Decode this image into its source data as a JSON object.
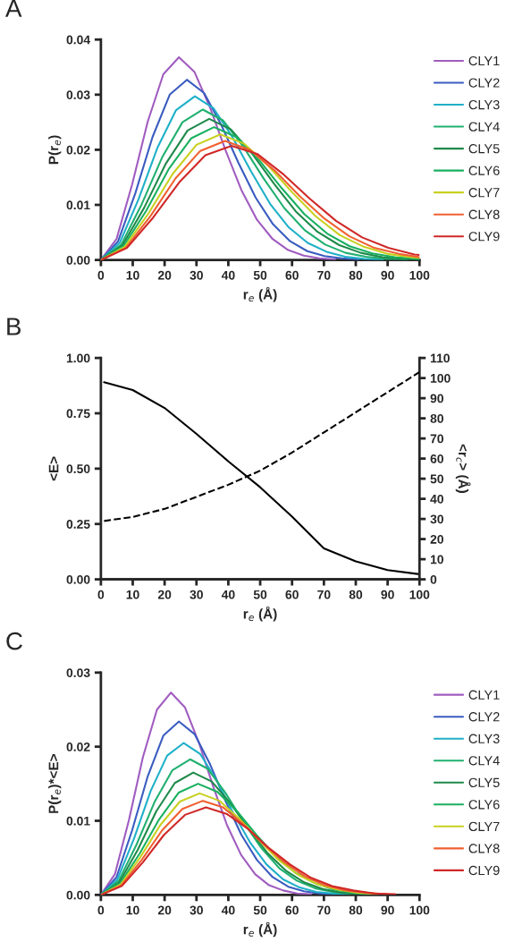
{
  "chart_data": [
    {
      "type": "line",
      "xlabel": "r$_{e}$ (Å)",
      "ylabel": "P(r$_{e}$)",
      "annotations": [
        "A"
      ],
      "legend": "right",
      "line_style": "solid",
      "marker": "none",
      "xlim": [
        0,
        100
      ],
      "xticks": [
        0,
        10,
        20,
        30,
        40,
        50,
        60,
        70,
        80,
        90,
        100
      ],
      "ylim": [
        0,
        0.04
      ],
      "yticks": [
        {
          "value": 0,
          "label": "0.00"
        },
        {
          "value": 0.01,
          "label": "0.01"
        },
        {
          "value": 0.02,
          "label": "0.02"
        },
        {
          "value": 0.03,
          "label": "0.03"
        },
        {
          "value": 0.04,
          "label": "0.04"
        }
      ],
      "series": [
        {
          "name": "CLY1",
          "color": "#a05cc0",
          "x": [
            0,
            4.9,
            9.8,
            14.7,
            19.6,
            24.5,
            29.4,
            34.3,
            39.2,
            44.1,
            49,
            53.9,
            58.8,
            63.7,
            68.6,
            73.5
          ],
          "values": [
            0,
            0.0038,
            0.0137,
            0.0251,
            0.0337,
            0.0368,
            0.0341,
            0.0276,
            0.0198,
            0.0127,
            0.0073,
            0.0038,
            0.0018,
            0.0008,
            0.0003,
            0.0001
          ]
        },
        {
          "name": "CLY2",
          "color": "#3a5cc0",
          "x": [
            0,
            5.4,
            10.8,
            16.2,
            21.6,
            27,
            32.4,
            37.8,
            43.2,
            48.6,
            54,
            59.4,
            64.8,
            70.2,
            75.6,
            81
          ],
          "values": [
            0,
            0.0034,
            0.0121,
            0.0223,
            0.03,
            0.0327,
            0.0303,
            0.0245,
            0.0176,
            0.0113,
            0.0065,
            0.0034,
            0.0016,
            0.0007,
            0.0003,
            0.0001
          ]
        },
        {
          "name": "CLY3",
          "color": "#1fb0c8",
          "x": [
            0,
            5.9,
            11.8,
            17.7,
            23.6,
            29.5,
            35.4,
            41.3,
            47.2,
            53.1,
            59,
            64.9,
            70.8,
            76.7,
            82.6,
            88.5
          ],
          "values": [
            0,
            0.0031,
            0.011,
            0.0203,
            0.0272,
            0.0297,
            0.0275,
            0.0223,
            0.016,
            0.0102,
            0.0059,
            0.0031,
            0.0015,
            0.0006,
            0.0002,
            0.0001
          ]
        },
        {
          "name": "CLY4",
          "color": "#20b070",
          "x": [
            0,
            6.4,
            12.8,
            19.2,
            25.6,
            32,
            38.4,
            44.8,
            51.2,
            57.6,
            64,
            70.4,
            76.8,
            83.2,
            89.6,
            96
          ],
          "values": [
            0,
            0.0028,
            0.0101,
            0.0186,
            0.025,
            0.0273,
            0.0253,
            0.0205,
            0.0147,
            0.0094,
            0.0054,
            0.0028,
            0.0013,
            0.0006,
            0.0002,
            0.0001
          ]
        },
        {
          "name": "CLY5",
          "color": "#1e8a4a",
          "x": [
            0,
            6.8,
            13.6,
            20.4,
            27.2,
            34,
            40.8,
            47.6,
            54.4,
            61.2,
            68,
            74.8,
            81.6,
            88.4,
            95.2,
            100
          ],
          "values": [
            0,
            0.0027,
            0.0095,
            0.0175,
            0.0235,
            0.0256,
            0.0237,
            0.0192,
            0.0138,
            0.0088,
            0.0051,
            0.0027,
            0.0013,
            0.0005,
            0.0002,
            0.0001
          ]
        },
        {
          "name": "CLY6",
          "color": "#19b060",
          "x": [
            0,
            7.1,
            14.2,
            21.3,
            28.4,
            35.5,
            42.6,
            49.7,
            56.8,
            63.9,
            71,
            78.1,
            85.2,
            92.3,
            100
          ],
          "values": [
            0,
            0.0025,
            0.0089,
            0.0165,
            0.0221,
            0.0241,
            0.0223,
            0.0181,
            0.013,
            0.0083,
            0.0048,
            0.0025,
            0.0012,
            0.0005,
            0.0002
          ]
        },
        {
          "name": "CLY7",
          "color": "#c8d020",
          "x": [
            0,
            7.5,
            15,
            22.5,
            30,
            37.5,
            45,
            52.5,
            60,
            67.5,
            75,
            82.5,
            90,
            97.5,
            100
          ],
          "values": [
            0,
            0.0024,
            0.0085,
            0.0156,
            0.0209,
            0.0228,
            0.0211,
            0.0171,
            0.0123,
            0.0079,
            0.0045,
            0.0024,
            0.0011,
            0.0005,
            0.0004
          ]
        },
        {
          "name": "CLY8",
          "color": "#f06030",
          "x": [
            0,
            7.8,
            15.6,
            23.4,
            31.2,
            39,
            46.8,
            54.6,
            62.4,
            70.2,
            78,
            85.8,
            93.6,
            100
          ],
          "values": [
            0,
            0.0022,
            0.008,
            0.0148,
            0.0198,
            0.0216,
            0.02,
            0.0162,
            0.0116,
            0.0075,
            0.0043,
            0.0022,
            0.0011,
            0.0005
          ]
        },
        {
          "name": "CLY9",
          "color": "#d02828",
          "x": [
            0,
            8.2,
            16.4,
            24.6,
            32.8,
            41,
            49.2,
            57.4,
            65.6,
            73.8,
            82,
            90.2,
            98.4,
            100
          ],
          "values": [
            0,
            0.0022,
            0.0077,
            0.0141,
            0.019,
            0.0207,
            0.0192,
            0.0155,
            0.0111,
            0.0071,
            0.0041,
            0.0022,
            0.001,
            0.0009
          ]
        }
      ]
    },
    {
      "type": "line",
      "xlabel": "r$_{e}$ (Å)",
      "ylabel": "<E>",
      "y2label": "<r$_{c}$> (Å)",
      "annotations": [
        "B"
      ],
      "marker": "none",
      "xlim": [
        0,
        100
      ],
      "xticks": [
        0,
        10,
        20,
        30,
        40,
        50,
        60,
        70,
        80,
        90,
        100
      ],
      "ylim": [
        0,
        1
      ],
      "yticks": [
        {
          "value": 0,
          "label": "0.00"
        },
        {
          "value": 0.25,
          "label": "0.25"
        },
        {
          "value": 0.5,
          "label": "0.50"
        },
        {
          "value": 0.75,
          "label": "0.75"
        },
        {
          "value": 1,
          "label": "1.00"
        }
      ],
      "y2lim": [
        0,
        110
      ],
      "y2ticks": [
        0,
        10,
        20,
        30,
        40,
        50,
        60,
        70,
        80,
        90,
        100,
        110
      ],
      "series": [
        {
          "color": "#000000",
          "line_style": "solid",
          "x": [
            1,
            10,
            20,
            30,
            40,
            50,
            60,
            70,
            80,
            90,
            100
          ],
          "values": [
            0.89,
            0.855,
            0.774,
            0.657,
            0.533,
            0.416,
            0.283,
            0.14,
            0.081,
            0.042,
            0.023
          ]
        },
        {
          "color": "#000000",
          "line_style": "dashed",
          "axis": "y2",
          "x": [
            1,
            10,
            20,
            30,
            40,
            50,
            60,
            70,
            80,
            90,
            100
          ],
          "values": [
            29,
            31,
            35,
            41,
            47,
            54,
            63,
            73,
            83,
            93,
            103
          ]
        }
      ]
    },
    {
      "type": "line",
      "xlabel": "r$_{e}$ (Å)",
      "ylabel": "P(r$_{e}$)*<E>",
      "annotations": [
        "C"
      ],
      "legend": "right",
      "line_style": "solid",
      "marker": "none",
      "xlim": [
        0,
        100
      ],
      "xticks": [
        0,
        10,
        20,
        30,
        40,
        50,
        60,
        70,
        80,
        90,
        100
      ],
      "ylim": [
        0,
        0.03
      ],
      "yticks": [
        {
          "value": 0,
          "label": "0.00"
        },
        {
          "value": 0.01,
          "label": "0.01"
        },
        {
          "value": 0.02,
          "label": "0.02"
        },
        {
          "value": 0.03,
          "label": "0.03"
        }
      ],
      "series": [
        {
          "name": "CLY1",
          "color": "#a05cc0",
          "x": [
            0,
            4.4,
            8.8,
            13.2,
            17.6,
            22,
            26.4,
            30.8,
            35.2,
            39.6,
            44,
            48.4,
            52.8,
            57.2,
            61.6,
            66
          ],
          "values": [
            0,
            0.0028,
            0.0101,
            0.0186,
            0.025,
            0.0273,
            0.0253,
            0.0205,
            0.0147,
            0.0094,
            0.0054,
            0.0028,
            0.0013,
            0.0006,
            0.0002,
            0.0001
          ]
        },
        {
          "name": "CLY2",
          "color": "#3a5cc0",
          "x": [
            0,
            4.9,
            9.8,
            14.7,
            19.6,
            24.5,
            29.4,
            34.3,
            39.2,
            44.1,
            49,
            53.9,
            58.8,
            63.7,
            68.6,
            73.5
          ],
          "values": [
            0,
            0.0024,
            0.0087,
            0.016,
            0.0215,
            0.0234,
            0.0217,
            0.0176,
            0.0126,
            0.0081,
            0.0047,
            0.0024,
            0.0011,
            0.0005,
            0.0002,
            0.0001
          ]
        },
        {
          "name": "CLY3",
          "color": "#1fb0c8",
          "x": [
            0,
            5.2,
            10.4,
            15.6,
            20.8,
            26,
            31.2,
            36.4,
            41.6,
            46.8,
            52,
            57.2,
            62.4,
            67.6,
            72.8,
            78
          ],
          "values": [
            0,
            0.0021,
            0.0076,
            0.014,
            0.0188,
            0.0205,
            0.019,
            0.0154,
            0.011,
            0.0071,
            0.0041,
            0.0021,
            0.001,
            0.0004,
            0.0002,
            0.0001
          ]
        },
        {
          "name": "CLY4",
          "color": "#20b070",
          "x": [
            0,
            5.6,
            11.2,
            16.8,
            22.4,
            28,
            33.6,
            39.2,
            44.8,
            50.4,
            56,
            61.6,
            67.2,
            72.8,
            78.4,
            84
          ],
          "values": [
            0,
            0.0019,
            0.0068,
            0.0125,
            0.0168,
            0.0183,
            0.017,
            0.0137,
            0.0098,
            0.0063,
            0.0036,
            0.0019,
            0.0009,
            0.0004,
            0.0002,
            0.0001
          ]
        },
        {
          "name": "CLY5",
          "color": "#1e8a4a",
          "x": [
            0,
            5.8,
            11.6,
            17.4,
            23.2,
            29,
            34.8,
            40.6,
            46.4,
            52.2,
            58,
            63.8,
            69.6,
            75.4,
            81.2
          ],
          "values": [
            0,
            0.0017,
            0.0061,
            0.0113,
            0.0151,
            0.0165,
            0.0153,
            0.0124,
            0.0089,
            0.0057,
            0.0033,
            0.0017,
            0.0008,
            0.0003,
            0.0001
          ]
        },
        {
          "name": "CLY6",
          "color": "#19b060",
          "x": [
            0,
            6.1,
            12.2,
            18.3,
            24.4,
            30.5,
            36.6,
            42.7,
            48.8,
            54.9,
            61,
            67.1,
            73.2,
            79.3,
            85.4
          ],
          "values": [
            0,
            0.0016,
            0.0056,
            0.0102,
            0.0138,
            0.015,
            0.0139,
            0.0113,
            0.0081,
            0.0052,
            0.003,
            0.0016,
            0.0007,
            0.0003,
            0.0001
          ]
        },
        {
          "name": "CLY7",
          "color": "#c8d020",
          "x": [
            0,
            6.2,
            12.4,
            18.6,
            24.8,
            31,
            37.2,
            43.4,
            49.6,
            55.8,
            62,
            68.2,
            74.4,
            80.6,
            86.8
          ],
          "values": [
            0,
            0.0014,
            0.0051,
            0.0094,
            0.0126,
            0.0137,
            0.0127,
            0.0103,
            0.0074,
            0.0047,
            0.0027,
            0.0014,
            0.0007,
            0.0003,
            0.0001
          ]
        },
        {
          "name": "CLY8",
          "color": "#f06030",
          "x": [
            0,
            6.4,
            12.8,
            19.2,
            25.6,
            32,
            38.4,
            44.8,
            51.2,
            57.6,
            64,
            70.4,
            76.8,
            83.2,
            89.6
          ],
          "values": [
            0,
            0.0013,
            0.0047,
            0.0087,
            0.0116,
            0.0127,
            0.0118,
            0.0095,
            0.0068,
            0.0044,
            0.0025,
            0.0013,
            0.0006,
            0.0003,
            0.0001
          ]
        },
        {
          "name": "CLY9",
          "color": "#d02828",
          "x": [
            0,
            6.6,
            13.2,
            19.8,
            26.4,
            33,
            39.6,
            46.2,
            52.8,
            59.4,
            66,
            72.6,
            79.2,
            85.8,
            92.4
          ],
          "values": [
            0,
            0.0012,
            0.0044,
            0.0081,
            0.0108,
            0.0118,
            0.0109,
            0.0089,
            0.0063,
            0.0041,
            0.0023,
            0.0012,
            0.0006,
            0.0002,
            0.0001
          ]
        }
      ]
    }
  ]
}
